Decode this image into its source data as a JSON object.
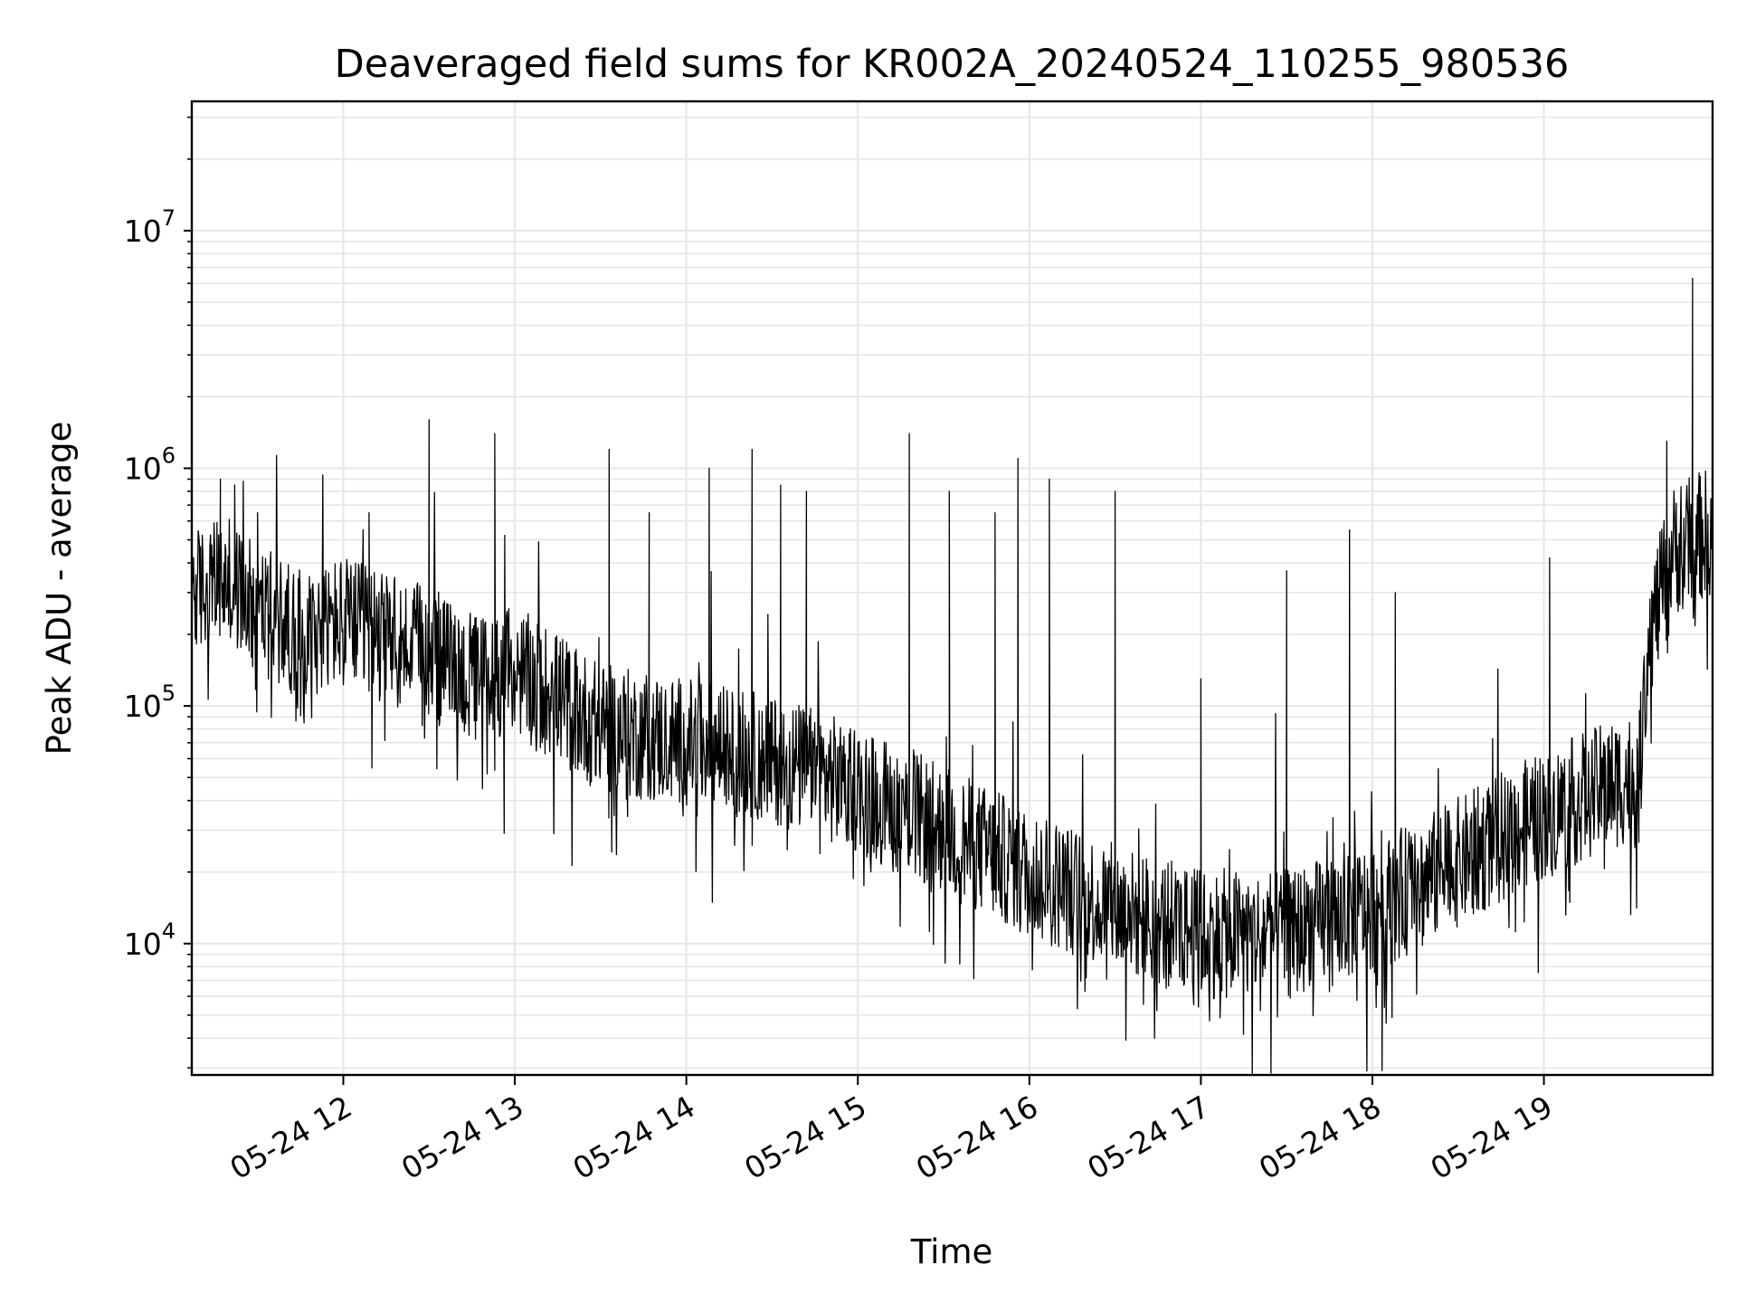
{
  "chart_data": {
    "type": "line",
    "title": "Deaveraged field sums for KR002A_20240524_110255_980536",
    "xlabel": "Time",
    "ylabel": "Peak ADU - average",
    "xscale": "time",
    "yscale": "log",
    "grid": true,
    "legend": "none",
    "xlim": [
      "2024-05-24 11:07",
      "2024-05-24 19:59"
    ],
    "ylim": [
      2800,
      35000000
    ],
    "x_ticks": [
      {
        "value": "2024-05-24 12:00",
        "label": "05-24 12"
      },
      {
        "value": "2024-05-24 13:00",
        "label": "05-24 13"
      },
      {
        "value": "2024-05-24 14:00",
        "label": "05-24 14"
      },
      {
        "value": "2024-05-24 15:00",
        "label": "05-24 15"
      },
      {
        "value": "2024-05-24 16:00",
        "label": "05-24 16"
      },
      {
        "value": "2024-05-24 17:00",
        "label": "05-24 17"
      },
      {
        "value": "2024-05-24 18:00",
        "label": "05-24 18"
      },
      {
        "value": "2024-05-24 19:00",
        "label": "05-24 19"
      }
    ],
    "y_ticks": [
      {
        "value": 10000,
        "base": "10",
        "exp": "4"
      },
      {
        "value": 100000,
        "base": "10",
        "exp": "5"
      },
      {
        "value": 1000000,
        "base": "10",
        "exp": "6"
      },
      {
        "value": 10000000,
        "base": "10",
        "exp": "7"
      }
    ],
    "line_color": "#000000",
    "grid_color": "#e6e6e6",
    "series": [
      {
        "baseline": [
          [
            "2024-05-24 11:07",
            300000
          ],
          [
            "2024-05-24 11:20",
            330000
          ],
          [
            "2024-05-24 11:30",
            260000
          ],
          [
            "2024-05-24 11:45",
            200000
          ],
          [
            "2024-05-24 12:00",
            230000
          ],
          [
            "2024-05-24 12:15",
            190000
          ],
          [
            "2024-05-24 12:30",
            170000
          ],
          [
            "2024-05-24 12:45",
            130000
          ],
          [
            "2024-05-24 13:00",
            140000
          ],
          [
            "2024-05-24 13:15",
            110000
          ],
          [
            "2024-05-24 13:30",
            80000
          ],
          [
            "2024-05-24 14:00",
            70000
          ],
          [
            "2024-05-24 14:30",
            60000
          ],
          [
            "2024-05-24 15:00",
            45000
          ],
          [
            "2024-05-24 15:30",
            30000
          ],
          [
            "2024-05-24 16:00",
            20000
          ],
          [
            "2024-05-24 16:30",
            14000
          ],
          [
            "2024-05-24 17:00",
            11000
          ],
          [
            "2024-05-24 17:30",
            11000
          ],
          [
            "2024-05-24 18:00",
            14000
          ],
          [
            "2024-05-24 18:30",
            22000
          ],
          [
            "2024-05-24 19:00",
            35000
          ],
          [
            "2024-05-24 19:30",
            50000
          ],
          [
            "2024-05-24 19:33",
            45000
          ],
          [
            "2024-05-24 19:37",
            200000
          ],
          [
            "2024-05-24 19:45",
            450000
          ],
          [
            "2024-05-24 19:59",
            550000
          ]
        ],
        "spikes": [
          [
            "2024-05-24 11:17",
            900000
          ],
          [
            "2024-05-24 11:22",
            850000
          ],
          [
            "2024-05-24 11:30",
            650000
          ],
          [
            "2024-05-24 12:09",
            650000
          ],
          [
            "2024-05-24 12:30",
            1600000
          ],
          [
            "2024-05-24 12:53",
            1400000
          ],
          [
            "2024-05-24 13:33",
            1200000
          ],
          [
            "2024-05-24 13:47",
            650000
          ],
          [
            "2024-05-24 14:08",
            1000000
          ],
          [
            "2024-05-24 14:23",
            1200000
          ],
          [
            "2024-05-24 14:33",
            850000
          ],
          [
            "2024-05-24 14:42",
            800000
          ],
          [
            "2024-05-24 15:18",
            1400000
          ],
          [
            "2024-05-24 15:32",
            800000
          ],
          [
            "2024-05-24 15:48",
            650000
          ],
          [
            "2024-05-24 15:56",
            1100000
          ],
          [
            "2024-05-24 16:07",
            900000
          ],
          [
            "2024-05-24 16:30",
            800000
          ],
          [
            "2024-05-24 17:00",
            130000
          ],
          [
            "2024-05-24 17:30",
            370000
          ],
          [
            "2024-05-24 17:52",
            550000
          ],
          [
            "2024-05-24 18:08",
            300000
          ],
          [
            "2024-05-24 19:02",
            420000
          ],
          [
            "2024-05-24 19:43",
            1300000
          ],
          [
            "2024-05-24 19:52",
            6300000
          ]
        ]
      }
    ]
  }
}
